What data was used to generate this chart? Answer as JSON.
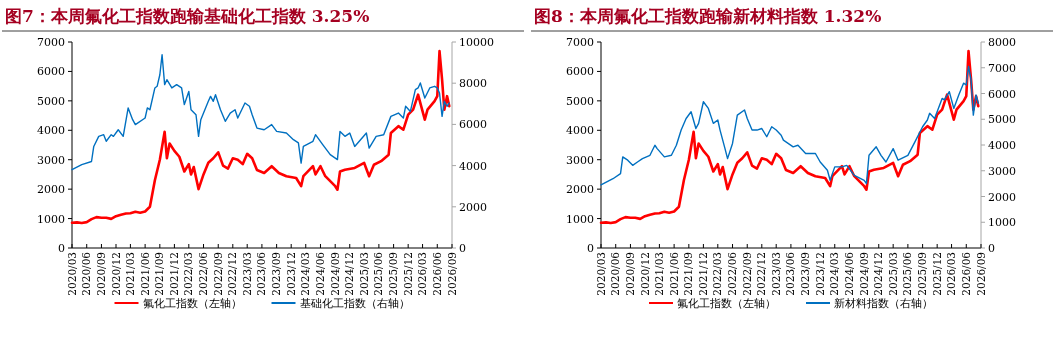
{
  "chart_data": [
    {
      "type": "line",
      "title": "图7：本周氟化工指数跑输基础化工指数 3.25%",
      "legend": "bottom",
      "xlim": [
        "2020-03",
        "2026-09"
      ],
      "xticks": [
        {
          "value": "2020-03",
          "label": "2020/03"
        },
        {
          "value": "2020-06",
          "label": "2020/06"
        },
        {
          "value": "2020-09",
          "label": "2020/09"
        },
        {
          "value": "2020-12",
          "label": "2020/12"
        },
        {
          "value": "2021-03",
          "label": "2021/03"
        },
        {
          "value": "2021-06",
          "label": "2021/06"
        },
        {
          "value": "2021-09",
          "label": "2021/09"
        },
        {
          "value": "2021-12",
          "label": "2021/12"
        },
        {
          "value": "2022-03",
          "label": "2022/03"
        },
        {
          "value": "2022-06",
          "label": "2022/06"
        },
        {
          "value": "2022-09",
          "label": "2022/09"
        },
        {
          "value": "2022-12",
          "label": "2022/12"
        },
        {
          "value": "2023-03",
          "label": "2023/03"
        },
        {
          "value": "2023-06",
          "label": "2023/06"
        },
        {
          "value": "2023-09",
          "label": "2023/09"
        },
        {
          "value": "2023-12",
          "label": "2023/12"
        },
        {
          "value": "2024-03",
          "label": "2024/03"
        },
        {
          "value": "2024-06",
          "label": "2024/06"
        },
        {
          "value": "2024-09",
          "label": "2024/09"
        },
        {
          "value": "2024-12",
          "label": "2024/12"
        },
        {
          "value": "2025-03",
          "label": "2025/03"
        },
        {
          "value": "2025-06",
          "label": "2025/06"
        },
        {
          "value": "2025-09",
          "label": "2025/09"
        },
        {
          "value": "2025-12",
          "label": "2025/12"
        },
        {
          "value": "2026-03",
          "label": "2026/03"
        },
        {
          "value": "2026-06",
          "label": "2026/06"
        },
        {
          "value": "2026-09",
          "label": "2026/09"
        }
      ],
      "ylim": [
        0,
        7000
      ],
      "yticks": [
        0,
        1000,
        2000,
        3000,
        4000,
        5000,
        6000,
        7000
      ],
      "y2lim": [
        0,
        10000
      ],
      "y2ticks": [
        0,
        2000,
        4000,
        6000,
        8000,
        10000
      ],
      "series": [
        {
          "name": "氟化工指数（左轴）",
          "color": "#ff0000",
          "x": [
            "2020-03-01",
            "2020-04-01",
            "2020-05-01",
            "2020-06-01",
            "2020-07-01",
            "2020-08-01",
            "2020-09-01",
            "2020-10-01",
            "2020-11-01",
            "2020-12-01",
            "2021-01-01",
            "2021-02-01",
            "2021-03-01",
            "2021-04-01",
            "2021-05-01",
            "2021-06-01",
            "2021-07-01",
            "2021-08-01",
            "2021-09-01",
            "2021-10-01",
            "2021-10-15",
            "2021-11-01",
            "2021-12-01",
            "2022-01-01",
            "2022-02-01",
            "2022-03-01",
            "2022-03-15",
            "2022-04-01",
            "2022-04-15",
            "2022-05-01",
            "2022-06-01",
            "2022-07-01",
            "2022-08-01",
            "2022-09-01",
            "2022-10-01",
            "2022-11-01",
            "2022-12-01",
            "2023-01-01",
            "2023-02-01",
            "2023-03-01",
            "2023-04-01",
            "2023-05-01",
            "2023-06-15",
            "2023-08-01",
            "2023-09-15",
            "2023-11-01",
            "2024-01-01",
            "2024-02-01",
            "2024-02-15",
            "2024-04-15",
            "2024-05-01",
            "2024-06-01",
            "2024-07-01",
            "2024-09-01",
            "2024-09-15",
            "2024-10-01",
            "2024-11-01",
            "2025-01-01",
            "2025-03-01",
            "2025-04-01",
            "2025-05-01",
            "2025-06-15",
            "2025-08-01",
            "2025-08-15",
            "2025-10-01",
            "2025-11-01",
            "2025-12-01",
            "2026-01-01",
            "2026-02-01",
            "2026-03-15",
            "2026-04-01",
            "2026-05-15",
            "2026-06-01",
            "2026-06-15",
            "2026-07-01",
            "2026-07-15",
            "2026-08-01",
            "2026-08-15"
          ],
          "values": [
            860,
            870,
            850,
            880,
            980,
            1050,
            1030,
            1030,
            990,
            1080,
            1130,
            1170,
            1180,
            1230,
            1200,
            1240,
            1400,
            2300,
            3000,
            3950,
            3050,
            3550,
            3300,
            3100,
            2600,
            2850,
            2500,
            2750,
            2400,
            2000,
            2500,
            2900,
            3050,
            3250,
            2800,
            2700,
            3050,
            3000,
            2850,
            3200,
            3050,
            2650,
            2550,
            2780,
            2550,
            2440,
            2380,
            2100,
            2440,
            2780,
            2500,
            2780,
            2440,
            2100,
            1980,
            2600,
            2660,
            2720,
            2890,
            2440,
            2830,
            2950,
            3170,
            3910,
            4140,
            4020,
            4530,
            4700,
            5210,
            4360,
            4700,
            4990,
            5160,
            6690,
            5720,
            4700,
            5160,
            4820
          ]
        },
        {
          "name": "基础化工指数（右轴）",
          "color": "#0070c0",
          "axis": "y2",
          "x": [
            "2020-03-01",
            "2020-05-01",
            "2020-07-01",
            "2020-07-15",
            "2020-08-15",
            "2020-09-15",
            "2020-10-01",
            "2020-11-01",
            "2020-11-15",
            "2020-12-15",
            "2021-01-15",
            "2021-02-15",
            "2021-03-15",
            "2021-04-01",
            "2021-06-01",
            "2021-06-15",
            "2021-07-01",
            "2021-08-01",
            "2021-08-15",
            "2021-09-01",
            "2021-09-15",
            "2021-10-01",
            "2021-10-15",
            "2021-11-15",
            "2021-12-15",
            "2022-01-15",
            "2022-02-01",
            "2022-03-01",
            "2022-03-15",
            "2022-04-15",
            "2022-05-01",
            "2022-05-15",
            "2022-07-01",
            "2022-07-15",
            "2022-08-01",
            "2022-08-15",
            "2022-09-15",
            "2022-10-15",
            "2022-11-15",
            "2022-12-15",
            "2023-01-01",
            "2023-02-15",
            "2023-03-15",
            "2023-04-01",
            "2023-05-01",
            "2023-06-15",
            "2023-08-01",
            "2023-09-01",
            "2023-11-01",
            "2023-12-15",
            "2024-01-15",
            "2024-02-01",
            "2024-02-15",
            "2024-04-15",
            "2024-05-01",
            "2024-06-15",
            "2024-08-01",
            "2024-09-15",
            "2024-10-01",
            "2024-11-01",
            "2024-12-01",
            "2025-01-01",
            "2025-03-15",
            "2025-04-01",
            "2025-05-15",
            "2025-07-01",
            "2025-08-15",
            "2025-10-01",
            "2025-11-01",
            "2025-11-15",
            "2025-12-15",
            "2026-01-15",
            "2026-02-01",
            "2026-02-15",
            "2026-03-15",
            "2026-04-15",
            "2026-05-15",
            "2026-06-01",
            "2026-06-15",
            "2026-07-01",
            "2026-07-15",
            "2026-08-01",
            "2026-08-15"
          ],
          "values": [
            3800,
            4050,
            4200,
            4930,
            5420,
            5500,
            5180,
            5500,
            5420,
            5740,
            5420,
            6800,
            6230,
            5990,
            6310,
            6800,
            6710,
            7770,
            7850,
            8410,
            9380,
            7930,
            8170,
            7770,
            7930,
            7770,
            6960,
            7600,
            6710,
            6470,
            5420,
            6230,
            7120,
            7360,
            7120,
            7440,
            6710,
            6150,
            6550,
            6710,
            6310,
            7040,
            6880,
            6470,
            5820,
            5740,
            5990,
            5660,
            5580,
            5260,
            5100,
            4120,
            4930,
            5180,
            5500,
            5020,
            4530,
            4290,
            5660,
            5420,
            5580,
            4930,
            5580,
            4850,
            5420,
            5500,
            6390,
            6550,
            6310,
            6880,
            6630,
            7690,
            7770,
            8010,
            7280,
            7770,
            7850,
            7770,
            7520,
            6390,
            7120,
            6880,
            7040
          ]
        }
      ]
    },
    {
      "type": "line",
      "title": "图8：本周氟化工指数跑输新材料指数 1.32%",
      "legend": "bottom",
      "xlim": [
        "2020-03",
        "2026-09"
      ],
      "xticks": [
        {
          "value": "2020-03",
          "label": "2020/03"
        },
        {
          "value": "2020-06",
          "label": "2020/06"
        },
        {
          "value": "2020-09",
          "label": "2020/09"
        },
        {
          "value": "2020-12",
          "label": "2020/12"
        },
        {
          "value": "2021-03",
          "label": "2021/03"
        },
        {
          "value": "2021-06",
          "label": "2021/06"
        },
        {
          "value": "2021-09",
          "label": "2021/09"
        },
        {
          "value": "2021-12",
          "label": "2021/12"
        },
        {
          "value": "2022-03",
          "label": "2022/03"
        },
        {
          "value": "2022-06",
          "label": "2022/06"
        },
        {
          "value": "2022-09",
          "label": "2022/09"
        },
        {
          "value": "2022-12",
          "label": "2022/12"
        },
        {
          "value": "2023-03",
          "label": "2023/03"
        },
        {
          "value": "2023-06",
          "label": "2023/06"
        },
        {
          "value": "2023-09",
          "label": "2023/09"
        },
        {
          "value": "2023-12",
          "label": "2023/12"
        },
        {
          "value": "2024-03",
          "label": "2024/03"
        },
        {
          "value": "2024-06",
          "label": "2024/06"
        },
        {
          "value": "2024-09",
          "label": "2024/09"
        },
        {
          "value": "2024-12",
          "label": "2024/12"
        },
        {
          "value": "2025-03",
          "label": "2025/03"
        },
        {
          "value": "2025-06",
          "label": "2025/06"
        },
        {
          "value": "2025-09",
          "label": "2025/09"
        },
        {
          "value": "2025-12",
          "label": "2025/12"
        },
        {
          "value": "2026-03",
          "label": "2026/03"
        },
        {
          "value": "2026-06",
          "label": "2026/06"
        },
        {
          "value": "2026-09",
          "label": "2026/09"
        }
      ],
      "ylim": [
        0,
        7000
      ],
      "yticks": [
        0,
        1000,
        2000,
        3000,
        4000,
        5000,
        6000,
        7000
      ],
      "y2lim": [
        0,
        8000
      ],
      "y2ticks": [
        0,
        1000,
        2000,
        3000,
        4000,
        5000,
        6000,
        7000,
        8000
      ],
      "series": [
        {
          "name": "氟化工指数（左轴）",
          "color": "#ff0000",
          "x": [
            "2020-03-01",
            "2020-04-01",
            "2020-05-01",
            "2020-06-01",
            "2020-07-01",
            "2020-08-01",
            "2020-09-01",
            "2020-10-01",
            "2020-11-01",
            "2020-12-01",
            "2021-01-01",
            "2021-02-01",
            "2021-03-01",
            "2021-04-01",
            "2021-05-01",
            "2021-06-01",
            "2021-07-01",
            "2021-08-01",
            "2021-09-01",
            "2021-10-01",
            "2021-10-15",
            "2021-11-01",
            "2021-12-01",
            "2022-01-01",
            "2022-02-01",
            "2022-03-01",
            "2022-03-15",
            "2022-04-01",
            "2022-04-15",
            "2022-05-01",
            "2022-06-01",
            "2022-07-01",
            "2022-08-01",
            "2022-09-01",
            "2022-10-01",
            "2022-11-01",
            "2022-12-01",
            "2023-01-01",
            "2023-02-01",
            "2023-03-01",
            "2023-04-01",
            "2023-05-01",
            "2023-06-15",
            "2023-08-01",
            "2023-09-15",
            "2023-11-01",
            "2024-01-01",
            "2024-02-01",
            "2024-02-15",
            "2024-04-15",
            "2024-05-01",
            "2024-06-01",
            "2024-07-01",
            "2024-09-01",
            "2024-09-15",
            "2024-10-01",
            "2024-11-01",
            "2025-01-01",
            "2025-03-01",
            "2025-04-01",
            "2025-05-01",
            "2025-06-15",
            "2025-08-01",
            "2025-08-15",
            "2025-10-01",
            "2025-11-01",
            "2025-12-01",
            "2026-01-01",
            "2026-02-01",
            "2026-03-15",
            "2026-04-01",
            "2026-05-15",
            "2026-06-01",
            "2026-06-15",
            "2026-07-01",
            "2026-07-15",
            "2026-08-01",
            "2026-08-15"
          ],
          "values": [
            860,
            870,
            850,
            880,
            980,
            1050,
            1030,
            1030,
            990,
            1080,
            1130,
            1170,
            1180,
            1230,
            1200,
            1240,
            1400,
            2300,
            3000,
            3950,
            3050,
            3550,
            3300,
            3100,
            2600,
            2850,
            2500,
            2750,
            2400,
            2000,
            2500,
            2900,
            3050,
            3250,
            2800,
            2700,
            3050,
            3000,
            2850,
            3200,
            3050,
            2650,
            2550,
            2780,
            2550,
            2440,
            2380,
            2100,
            2440,
            2780,
            2500,
            2780,
            2440,
            2100,
            1980,
            2600,
            2660,
            2720,
            2890,
            2440,
            2830,
            2950,
            3170,
            3910,
            4140,
            4020,
            4530,
            4700,
            5210,
            4360,
            4700,
            4990,
            5160,
            6690,
            5720,
            4700,
            5160,
            4820
          ]
        },
        {
          "name": "新材料指数（右轴）",
          "color": "#0070c0",
          "axis": "y2",
          "x": [
            "2020-03-01",
            "2020-05-15",
            "2020-07-01",
            "2020-07-15",
            "2020-08-15",
            "2020-09-15",
            "2020-10-15",
            "2020-11-15",
            "2021-01-01",
            "2021-02-01",
            "2021-02-15",
            "2021-04-01",
            "2021-05-15",
            "2021-06-15",
            "2021-07-15",
            "2021-08-15",
            "2021-09-15",
            "2021-10-15",
            "2021-11-01",
            "2021-12-01",
            "2022-01-01",
            "2022-02-01",
            "2022-03-01",
            "2022-03-15",
            "2022-04-15",
            "2022-05-01",
            "2022-06-01",
            "2022-07-01",
            "2022-08-15",
            "2022-09-01",
            "2022-10-01",
            "2022-11-01",
            "2022-12-01",
            "2023-01-01",
            "2023-02-01",
            "2023-03-01",
            "2023-04-01",
            "2023-04-15",
            "2023-06-15",
            "2023-07-15",
            "2023-09-01",
            "2023-11-01",
            "2023-12-01",
            "2024-01-15",
            "2024-02-01",
            "2024-03-01",
            "2024-04-15",
            "2024-05-15",
            "2024-07-01",
            "2024-09-01",
            "2024-09-15",
            "2024-10-01",
            "2024-11-15",
            "2024-12-15",
            "2025-01-15",
            "2025-03-01",
            "2025-04-01",
            "2025-06-01",
            "2025-07-15",
            "2025-09-01",
            "2025-10-01",
            "2025-10-15",
            "2025-11-15",
            "2026-01-01",
            "2026-01-15",
            "2026-02-15",
            "2026-03-15",
            "2026-04-15",
            "2026-05-15",
            "2026-06-01",
            "2026-06-15",
            "2026-07-01",
            "2026-07-15",
            "2026-08-01",
            "2026-08-15"
          ],
          "values": [
            2450,
            2690,
            2890,
            3540,
            3410,
            3210,
            3340,
            3470,
            3600,
            3990,
            3860,
            3540,
            3600,
            3990,
            4580,
            5030,
            5290,
            4640,
            4840,
            5680,
            5420,
            4840,
            4970,
            4580,
            3860,
            3470,
            4060,
            5160,
            5360,
            5030,
            4580,
            4580,
            4640,
            4320,
            4710,
            4580,
            4380,
            4190,
            3930,
            3990,
            3670,
            3670,
            3340,
            3020,
            2630,
            3150,
            3150,
            3210,
            2820,
            2630,
            2500,
            3600,
            3930,
            3600,
            3340,
            3860,
            3410,
            3600,
            4120,
            4710,
            4970,
            5230,
            5030,
            5810,
            5750,
            6070,
            5420,
            5940,
            6400,
            6330,
            7050,
            6530,
            5160,
            5940,
            5620
          ]
        }
      ]
    }
  ]
}
